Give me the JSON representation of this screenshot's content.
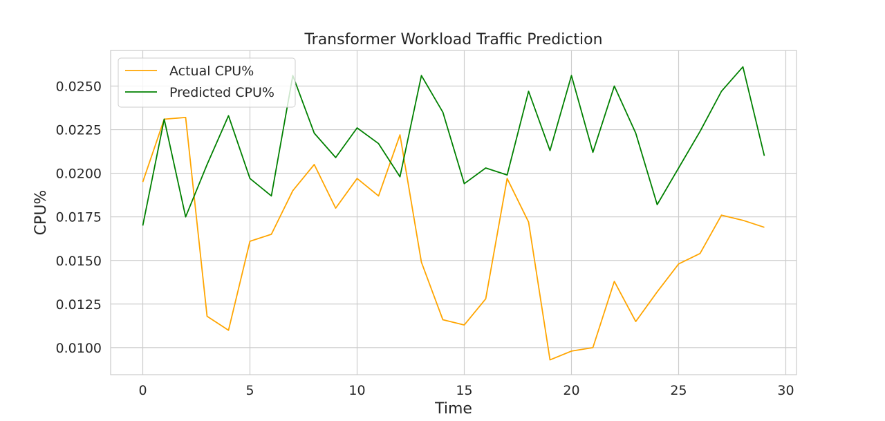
{
  "chart_data": {
    "type": "line",
    "title": "Transformer Workload Traffic Prediction",
    "xlabel": "Time",
    "ylabel": "CPU%",
    "xlim": [
      -1.5,
      30.5
    ],
    "ylim": [
      0.00845,
      0.02704
    ],
    "xticks": [
      0,
      5,
      10,
      15,
      20,
      25,
      30
    ],
    "xtick_labels": [
      "0",
      "5",
      "10",
      "15",
      "20",
      "25",
      "30"
    ],
    "yticks": [
      0.01,
      0.0125,
      0.015,
      0.0175,
      0.02,
      0.0225,
      0.025
    ],
    "ytick_labels": [
      "0.0100",
      "0.0125",
      "0.0150",
      "0.0175",
      "0.0200",
      "0.0225",
      "0.0250"
    ],
    "grid": true,
    "legend_position": "top-left",
    "x": [
      0,
      1,
      2,
      3,
      4,
      5,
      6,
      7,
      8,
      9,
      10,
      11,
      12,
      13,
      14,
      15,
      16,
      17,
      18,
      19,
      20,
      21,
      22,
      23,
      24,
      25,
      26,
      27,
      28,
      29
    ],
    "series": [
      {
        "name": "Actual CPU%",
        "color": "#ffa500",
        "values": [
          0.0195,
          0.0231,
          0.0232,
          0.0118,
          0.011,
          0.0161,
          0.0165,
          0.019,
          0.0205,
          0.018,
          0.0197,
          0.0187,
          0.0222,
          0.0149,
          0.0116,
          0.0113,
          0.0128,
          0.0197,
          0.0172,
          0.0093,
          0.0098,
          0.01,
          0.0138,
          0.0115,
          0.0132,
          0.0148,
          0.0154,
          0.0176,
          0.0173,
          0.0169
        ]
      },
      {
        "name": "Predicted CPU%",
        "color": "#008000",
        "values": [
          0.017,
          0.0231,
          0.0175,
          0.0205,
          0.0233,
          0.0197,
          0.0187,
          0.0256,
          0.0223,
          0.0209,
          0.0226,
          0.0217,
          0.0198,
          0.0256,
          0.0235,
          0.0194,
          0.0203,
          0.0199,
          0.0247,
          0.0213,
          0.0256,
          0.0212,
          0.025,
          0.0223,
          0.0182,
          0.0203,
          0.0224,
          0.0247,
          0.0261,
          0.021
        ]
      }
    ]
  }
}
